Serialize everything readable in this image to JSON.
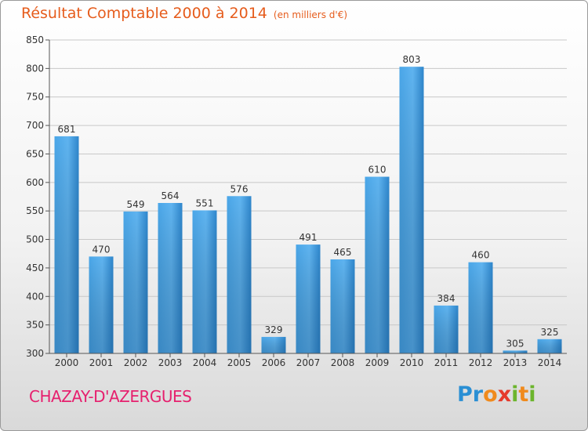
{
  "chart_data": {
    "type": "bar",
    "title": "Résultat Comptable 2000 à 2014",
    "subtitle": "(en milliers d'€)",
    "categories": [
      "2000",
      "2001",
      "2002",
      "2003",
      "2004",
      "2005",
      "2006",
      "2007",
      "2008",
      "2009",
      "2010",
      "2011",
      "2012",
      "2013",
      "2014"
    ],
    "values": [
      681,
      470,
      549,
      564,
      551,
      576,
      329,
      491,
      465,
      610,
      803,
      384,
      460,
      305,
      325
    ],
    "ylim": [
      300,
      850
    ],
    "yticks": [
      300,
      350,
      400,
      450,
      500,
      550,
      600,
      650,
      700,
      750,
      800,
      850
    ],
    "grid": true,
    "bar_color": "#2e8fd8"
  },
  "footer": {
    "commune": "CHAZAY-D'AZERGUES",
    "logo_letters": [
      {
        "ch": "P",
        "color": "#2a8fd4"
      },
      {
        "ch": "r",
        "color": "#2a8fd4"
      },
      {
        "ch": "o",
        "color": "#f08a1c"
      },
      {
        "ch": "x",
        "color": "#e63a2c"
      },
      {
        "ch": "i",
        "color": "#6cb52d"
      },
      {
        "ch": "t",
        "color": "#f08a1c"
      },
      {
        "ch": "i",
        "color": "#6cb52d"
      }
    ]
  }
}
